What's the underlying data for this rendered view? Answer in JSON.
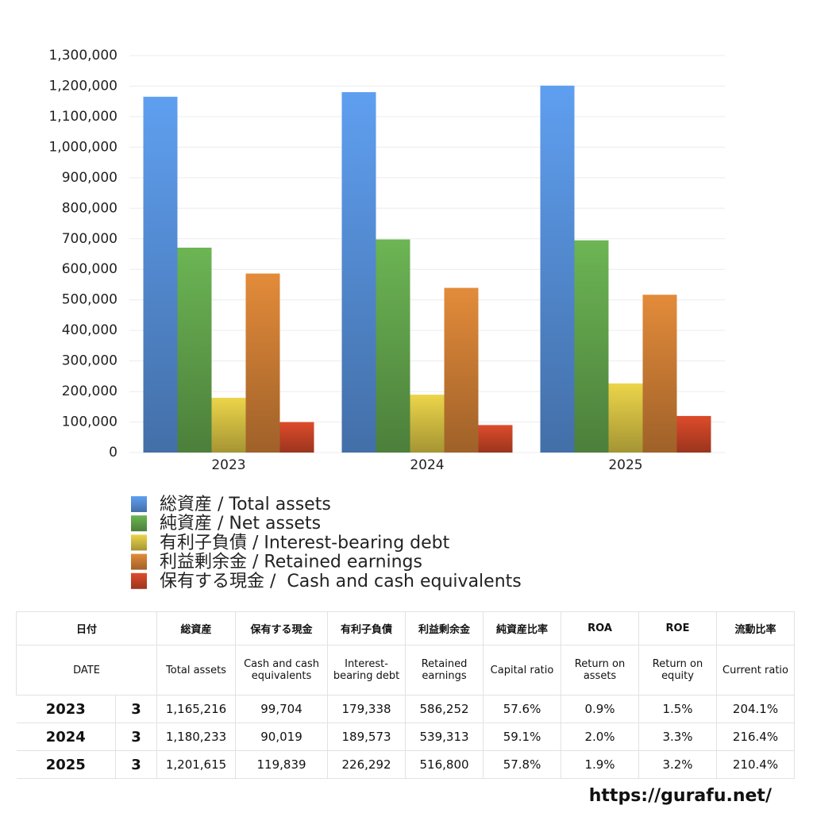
{
  "chart_data": {
    "type": "bar",
    "categories": [
      "2023",
      "2024",
      "2025"
    ],
    "series": [
      {
        "name": "総資産 / Total assets",
        "color": "#5f9ff0",
        "values": [
          1165216,
          1180233,
          1201615
        ]
      },
      {
        "name": "純資産 / Net assets",
        "color": "#6cb554",
        "values": [
          671000,
          698000,
          695000
        ]
      },
      {
        "name": "有利子負債 / Interest-bearing debt",
        "color": "#ecd54a",
        "values": [
          179338,
          189573,
          226292
        ]
      },
      {
        "name": "利益剰余金 / Retained earnings",
        "color": "#e38b3a",
        "values": [
          586252,
          539313,
          516800
        ]
      },
      {
        "name": "保有する現金 /  Cash and cash equivalents",
        "color": "#dd4b2b",
        "values": [
          99704,
          90019,
          119839
        ]
      }
    ],
    "ylim": [
      0,
      1300000
    ],
    "yticks": [
      0,
      {
        "value": 100000,
        "label": "100,000"
      },
      {
        "value": 200000,
        "label": "200,000"
      },
      {
        "value": 300000,
        "label": "300,000"
      },
      {
        "value": 400000,
        "label": "400,000"
      },
      {
        "value": 500000,
        "label": "500,000"
      },
      {
        "value": 600000,
        "label": "600,000"
      },
      {
        "value": 700000,
        "label": "700,000"
      },
      {
        "value": 800000,
        "label": "800,000"
      },
      {
        "value": 900000,
        "label": "900,000"
      },
      {
        "value": 1000000,
        "label": "1,000,000"
      },
      {
        "value": 1100000,
        "label": "1,100,000"
      },
      {
        "value": 1200000,
        "label": "1,200,000"
      },
      {
        "value": 1300000,
        "label": "1,300,000"
      }
    ],
    "grid": true,
    "legend": "bottom"
  },
  "table": {
    "header": [
      "日付",
      "総資産",
      "保有する現金",
      "有利子負債",
      "利益剰余金",
      "純資産比率",
      "ROA",
      "ROE",
      "流動比率"
    ],
    "subheader": [
      "DATE",
      "Total assets",
      "Cash and cash equivalents",
      "Interest-bearing debt",
      "Retained earnings",
      "Capital ratio",
      "Return on assets",
      "Return on equity",
      "Current ratio"
    ],
    "rows": [
      [
        "2023",
        "3",
        "1,165,216",
        "99,704",
        "179,338",
        "586,252",
        "57.6%",
        "0.9%",
        "1.5%",
        "204.1%"
      ],
      [
        "2024",
        "3",
        "1,180,233",
        "90,019",
        "189,573",
        "539,313",
        "59.1%",
        "2.0%",
        "3.3%",
        "216.4%"
      ],
      [
        "2025",
        "3",
        "1,201,615",
        "119,839",
        "226,292",
        "516,800",
        "57.8%",
        "1.9%",
        "3.2%",
        "210.4%"
      ]
    ]
  },
  "footer": "https://gurafu.net/"
}
